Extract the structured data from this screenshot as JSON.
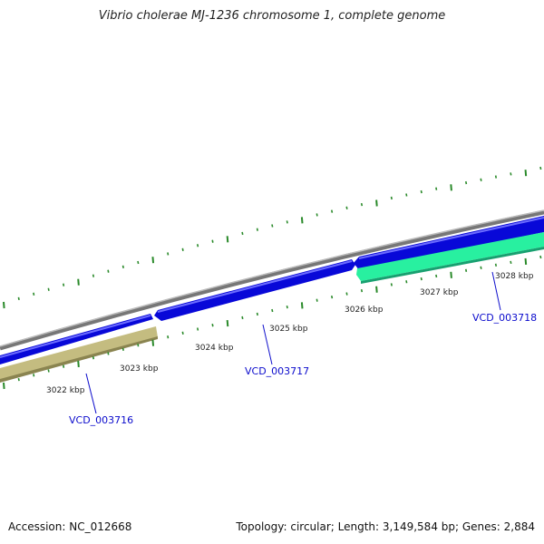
{
  "title": "Vibrio cholerae MJ-1236 chromosome 1, complete genome",
  "footer": {
    "accession": "Accession: NC_012668",
    "summary": "Topology: circular; Length: 3,149,584 bp; Genes: 2,884"
  },
  "colors": {
    "backbone": "#888888",
    "forward_gene": "#1010e0",
    "reverse_gene_a": "#c8c080",
    "reverse_gene_b": "#30f0a0",
    "ticks": "#2a8a2a",
    "gene_label": "#0a0acc"
  },
  "tick_labels": [
    "3022 kbp",
    "3023 kbp",
    "3024 kbp",
    "3025 kbp",
    "3026 kbp",
    "3027 kbp",
    "3028 kbp"
  ],
  "genes": [
    {
      "label": "VCD_003716",
      "strand": "reverse"
    },
    {
      "label": "VCD_003717",
      "strand": "forward"
    },
    {
      "label": "VCD_003718",
      "strand": "reverse"
    }
  ]
}
